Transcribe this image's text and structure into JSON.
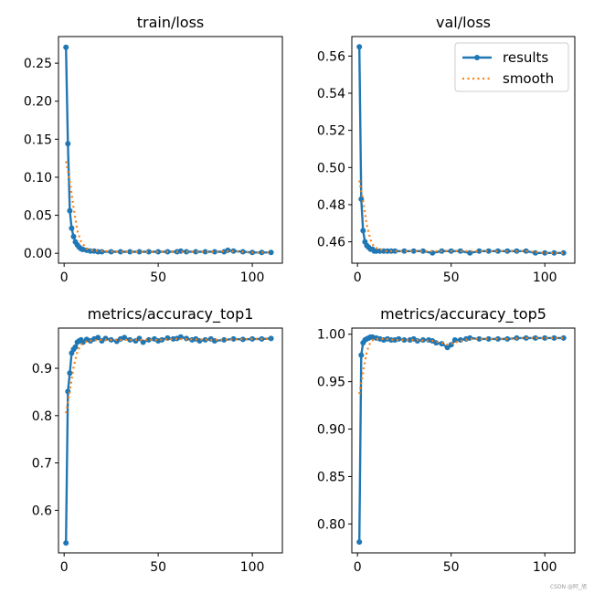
{
  "colors": {
    "results": "#1f77b4",
    "smooth": "#ff7f0e",
    "axis": "#000000"
  },
  "watermark": "CSDN @阿_旭",
  "chart_data": [
    {
      "type": "line",
      "title": "train/loss",
      "xlim": [
        -3,
        116
      ],
      "ylim": [
        -0.013,
        0.285
      ],
      "xticks": [
        0,
        50,
        100
      ],
      "xtick_labels": [
        "0",
        "50",
        "100"
      ],
      "yticks": [
        0.0,
        0.05,
        0.1,
        0.15,
        0.2,
        0.25
      ],
      "ytick_labels": [
        "0.00",
        "0.05",
        "0.10",
        "0.15",
        "0.20",
        "0.25"
      ],
      "legend": null,
      "series": [
        {
          "name": "results",
          "style": "line-markers",
          "x": [
            1,
            2,
            3,
            4,
            5,
            6,
            7,
            8,
            9,
            10,
            12,
            14,
            16,
            18,
            20,
            25,
            30,
            35,
            40,
            45,
            50,
            55,
            60,
            62,
            65,
            70,
            75,
            80,
            85,
            87,
            90,
            95,
            100,
            105,
            110
          ],
          "y": [
            0.271,
            0.144,
            0.056,
            0.033,
            0.022,
            0.015,
            0.011,
            0.008,
            0.006,
            0.005,
            0.004,
            0.003,
            0.003,
            0.002,
            0.002,
            0.002,
            0.002,
            0.002,
            0.002,
            0.002,
            0.002,
            0.002,
            0.002,
            0.003,
            0.002,
            0.002,
            0.002,
            0.002,
            0.002,
            0.004,
            0.003,
            0.002,
            0.001,
            0.001,
            0.001
          ]
        },
        {
          "name": "smooth",
          "style": "dotted",
          "x": [
            1,
            3,
            5,
            7,
            9,
            12,
            15,
            20,
            30,
            40,
            50,
            60,
            70,
            80,
            88,
            95,
            100,
            110
          ],
          "y": [
            0.121,
            0.095,
            0.06,
            0.03,
            0.015,
            0.006,
            0.004,
            0.003,
            0.002,
            0.002,
            0.002,
            0.002,
            0.002,
            0.002,
            0.003,
            0.002,
            0.001,
            0.001
          ]
        }
      ]
    },
    {
      "type": "line",
      "title": "val/loss",
      "xlim": [
        -3,
        116
      ],
      "ylim": [
        0.4485,
        0.5705
      ],
      "xticks": [
        0,
        50,
        100
      ],
      "xtick_labels": [
        "0",
        "50",
        "100"
      ],
      "yticks": [
        0.46,
        0.48,
        0.5,
        0.52,
        0.54,
        0.56
      ],
      "ytick_labels": [
        "0.46",
        "0.48",
        "0.50",
        "0.52",
        "0.54",
        "0.56"
      ],
      "legend": {
        "position": "top-right",
        "entries": [
          "results",
          "smooth"
        ]
      },
      "series": [
        {
          "name": "results",
          "style": "line-markers",
          "x": [
            1,
            2,
            3,
            4,
            5,
            6,
            7,
            8,
            9,
            10,
            12,
            14,
            16,
            18,
            20,
            25,
            30,
            35,
            40,
            45,
            50,
            55,
            60,
            65,
            70,
            75,
            80,
            85,
            90,
            95,
            100,
            105,
            110
          ],
          "y": [
            0.565,
            0.483,
            0.466,
            0.46,
            0.458,
            0.457,
            0.456,
            0.456,
            0.455,
            0.455,
            0.455,
            0.455,
            0.455,
            0.455,
            0.455,
            0.455,
            0.455,
            0.455,
            0.454,
            0.455,
            0.455,
            0.455,
            0.454,
            0.455,
            0.455,
            0.455,
            0.455,
            0.455,
            0.455,
            0.454,
            0.454,
            0.454,
            0.454
          ]
        },
        {
          "name": "smooth",
          "style": "dotted",
          "x": [
            1,
            3,
            5,
            7,
            9,
            12,
            15,
            20,
            30,
            40,
            50,
            60,
            70,
            80,
            90,
            100,
            110
          ],
          "y": [
            0.493,
            0.482,
            0.469,
            0.461,
            0.457,
            0.456,
            0.455,
            0.455,
            0.455,
            0.455,
            0.455,
            0.455,
            0.455,
            0.455,
            0.455,
            0.454,
            0.454
          ]
        }
      ]
    },
    {
      "type": "line",
      "title": "metrics/accuracy_top1",
      "xlim": [
        -3,
        116
      ],
      "ylim": [
        0.51,
        0.985
      ],
      "xticks": [
        0,
        50,
        100
      ],
      "xtick_labels": [
        "0",
        "50",
        "100"
      ],
      "yticks": [
        0.6,
        0.7,
        0.8,
        0.9
      ],
      "ytick_labels": [
        "0.6",
        "0.7",
        "0.8",
        "0.9"
      ],
      "legend": null,
      "series": [
        {
          "name": "results",
          "style": "line-markers",
          "x": [
            1,
            2,
            3,
            4,
            5,
            6,
            7,
            8,
            9,
            10,
            12,
            14,
            16,
            18,
            20,
            22,
            25,
            28,
            30,
            32,
            35,
            38,
            40,
            42,
            45,
            48,
            50,
            52,
            55,
            58,
            60,
            62,
            65,
            68,
            70,
            72,
            75,
            78,
            80,
            85,
            90,
            95,
            100,
            105,
            110
          ],
          "y": [
            0.531,
            0.851,
            0.89,
            0.932,
            0.94,
            0.945,
            0.955,
            0.958,
            0.96,
            0.955,
            0.961,
            0.958,
            0.962,
            0.965,
            0.958,
            0.963,
            0.96,
            0.957,
            0.962,
            0.965,
            0.96,
            0.958,
            0.963,
            0.955,
            0.96,
            0.962,
            0.958,
            0.96,
            0.964,
            0.962,
            0.963,
            0.966,
            0.963,
            0.96,
            0.962,
            0.958,
            0.96,
            0.962,
            0.958,
            0.96,
            0.962,
            0.961,
            0.962,
            0.962,
            0.963
          ]
        },
        {
          "name": "smooth",
          "style": "dotted",
          "x": [
            1,
            3,
            5,
            7,
            9,
            12,
            15,
            20,
            30,
            40,
            50,
            60,
            70,
            80,
            90,
            100,
            110
          ],
          "y": [
            0.805,
            0.852,
            0.902,
            0.935,
            0.95,
            0.957,
            0.959,
            0.96,
            0.96,
            0.96,
            0.96,
            0.962,
            0.961,
            0.96,
            0.961,
            0.962,
            0.962
          ]
        }
      ]
    },
    {
      "type": "line",
      "title": "metrics/accuracy_top5",
      "xlim": [
        -3,
        116
      ],
      "ylim": [
        0.7695,
        1.0065
      ],
      "xticks": [
        0,
        50,
        100
      ],
      "xtick_labels": [
        "0",
        "50",
        "100"
      ],
      "yticks": [
        0.8,
        0.85,
        0.9,
        0.95,
        1.0
      ],
      "ytick_labels": [
        "0.80",
        "0.85",
        "0.90",
        "0.95",
        "1.00"
      ],
      "legend": null,
      "series": [
        {
          "name": "results",
          "style": "line-markers",
          "x": [
            1,
            2,
            3,
            4,
            5,
            6,
            7,
            8,
            10,
            12,
            14,
            16,
            18,
            20,
            22,
            25,
            28,
            30,
            32,
            35,
            38,
            40,
            42,
            45,
            48,
            50,
            52,
            55,
            58,
            60,
            65,
            70,
            75,
            80,
            85,
            90,
            95,
            100,
            105,
            110
          ],
          "y": [
            0.781,
            0.978,
            0.991,
            0.994,
            0.995,
            0.996,
            0.997,
            0.997,
            0.996,
            0.995,
            0.994,
            0.995,
            0.994,
            0.994,
            0.995,
            0.994,
            0.994,
            0.995,
            0.993,
            0.994,
            0.994,
            0.993,
            0.991,
            0.99,
            0.986,
            0.989,
            0.994,
            0.994,
            0.995,
            0.996,
            0.995,
            0.995,
            0.995,
            0.995,
            0.996,
            0.996,
            0.996,
            0.996,
            0.996,
            0.996
          ]
        },
        {
          "name": "smooth",
          "style": "dotted",
          "x": [
            1,
            3,
            5,
            7,
            9,
            12,
            15,
            20,
            30,
            40,
            45,
            48,
            50,
            55,
            60,
            70,
            80,
            90,
            100,
            110
          ],
          "y": [
            0.937,
            0.96,
            0.982,
            0.992,
            0.995,
            0.995,
            0.995,
            0.994,
            0.994,
            0.993,
            0.991,
            0.989,
            0.99,
            0.993,
            0.995,
            0.995,
            0.995,
            0.996,
            0.996,
            0.996
          ]
        }
      ]
    }
  ]
}
